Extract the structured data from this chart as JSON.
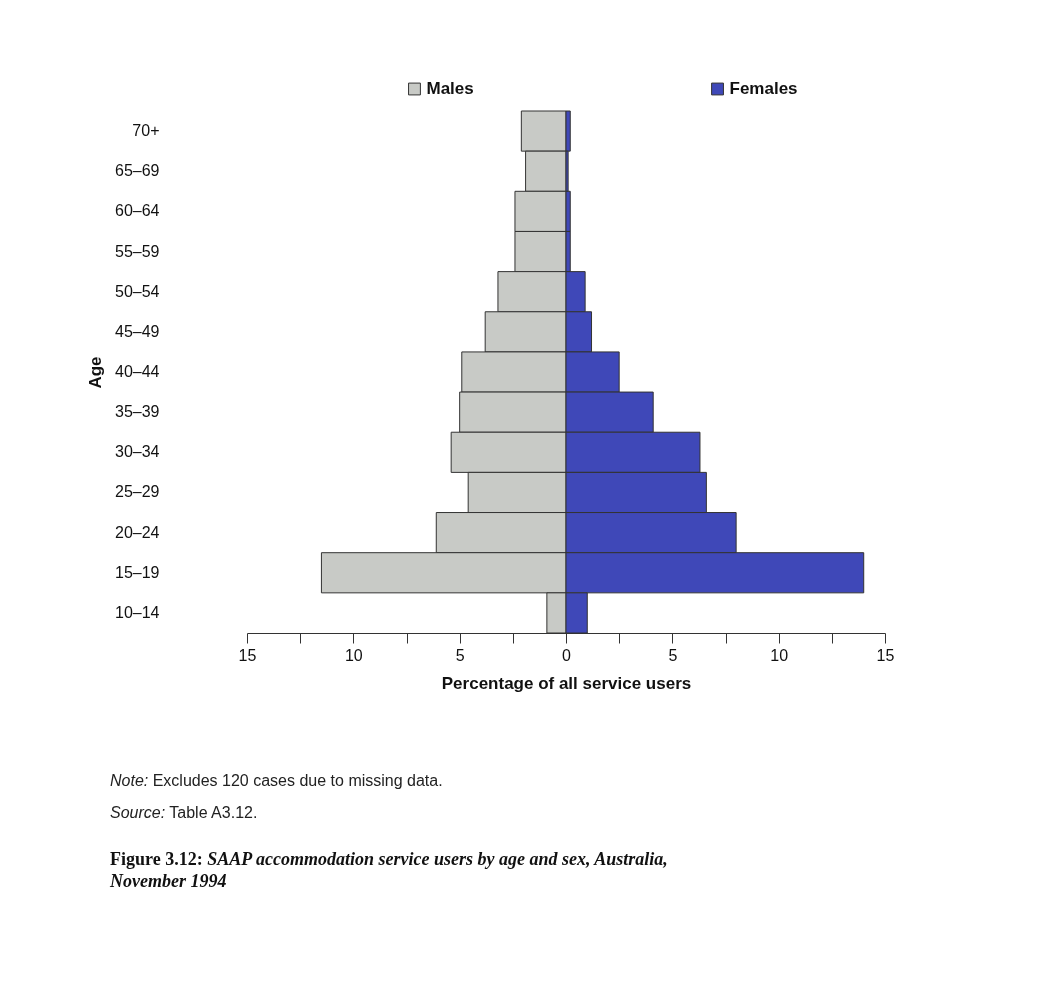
{
  "chart_data": {
    "type": "bar",
    "orientation": "horizontal",
    "stacked": true,
    "title": "Figure 3.12: SAAP accommodation service users by age and sex, Australia, November 1994",
    "xlabel": "Percentage of all service users",
    "ylabel": "Age",
    "categories": [
      "70+",
      "65–69",
      "60–64",
      "55–59",
      "50–54",
      "45–49",
      "40–44",
      "35–39",
      "30–34",
      "25–29",
      "20–24",
      "15–19",
      "10–14"
    ],
    "series": [
      {
        "name": "Males",
        "color": "#c8cac6",
        "values": [
          -2.1,
          -1.9,
          -2.4,
          -2.4,
          -3.2,
          -3.8,
          -4.9,
          -5.0,
          -5.4,
          -4.6,
          -6.1,
          -11.5,
          -0.9
        ]
      },
      {
        "name": "Females",
        "color": "#3f48b8",
        "values": [
          0.2,
          0.1,
          0.2,
          0.2,
          0.9,
          1.2,
          2.5,
          4.1,
          6.3,
          6.6,
          8.0,
          14.0,
          1.0
        ]
      }
    ],
    "xlim": [
      -15,
      15
    ],
    "xticks": [
      {
        "value": -15,
        "label": "15"
      },
      {
        "value": -12.5,
        "label": null
      },
      {
        "value": -10,
        "label": "10"
      },
      {
        "value": -7.5,
        "label": null
      },
      {
        "value": -5,
        "label": "5"
      },
      {
        "value": -2.5,
        "label": null
      },
      0,
      {
        "value": 2.5,
        "label": null
      },
      5,
      {
        "value": 7.5,
        "label": null
      },
      10,
      {
        "value": 12.5,
        "label": null
      },
      15
    ],
    "grid": false,
    "legend": "top",
    "annotations": [
      "Note: Excludes 120 cases due to missing data.",
      "Source: Table A3.12."
    ]
  }
}
